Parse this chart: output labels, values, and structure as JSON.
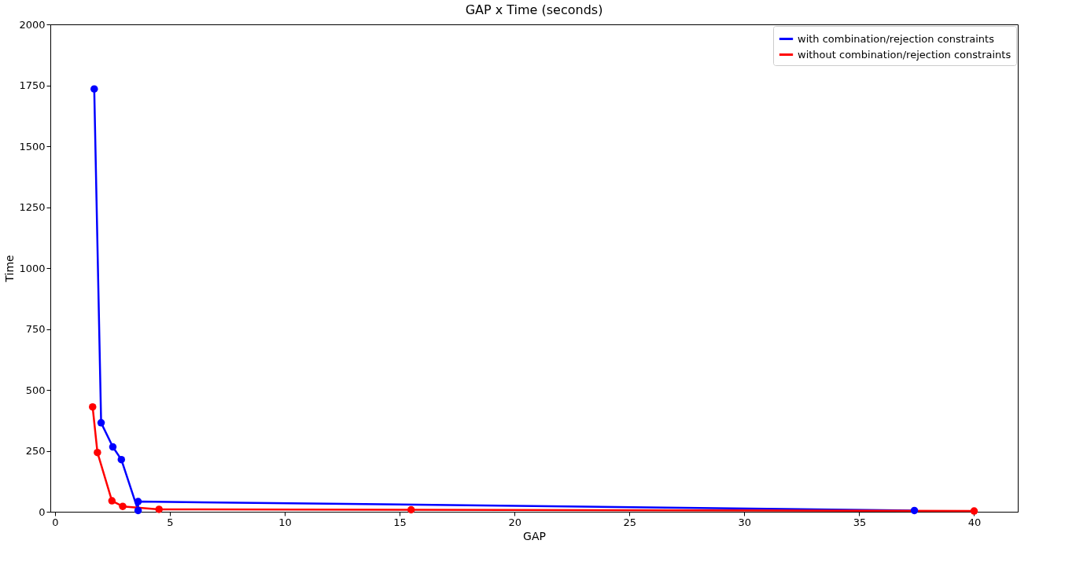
{
  "chart_data": {
    "type": "line",
    "title": "GAP x Time (seconds)",
    "xlabel": "GAP",
    "ylabel": "Time",
    "xlim": [
      -0.2,
      41.9
    ],
    "ylim": [
      0,
      2000
    ],
    "xticks": [
      0,
      5,
      10,
      15,
      20,
      25,
      30,
      35,
      40
    ],
    "yticks": [
      0,
      250,
      500,
      750,
      1000,
      1250,
      1500,
      1750,
      2000
    ],
    "series": [
      {
        "name": "with combination/rejection constraints",
        "color": "#0000ff",
        "x": [
          1.71,
          2.01,
          2.52,
          2.89,
          3.62,
          3.62,
          37.4
        ],
        "values": [
          1735,
          365,
          266,
          214,
          5,
          42,
          5
        ]
      },
      {
        "name": "without combination/rejection constraints",
        "color": "#ff0000",
        "x": [
          1.64,
          1.85,
          2.48,
          2.95,
          4.53,
          15.5,
          40
        ],
        "values": [
          430,
          243,
          45,
          22,
          10,
          8,
          3
        ]
      }
    ],
    "marker": "circle",
    "line_style": "solid",
    "legend": "top right",
    "grid": false
  }
}
